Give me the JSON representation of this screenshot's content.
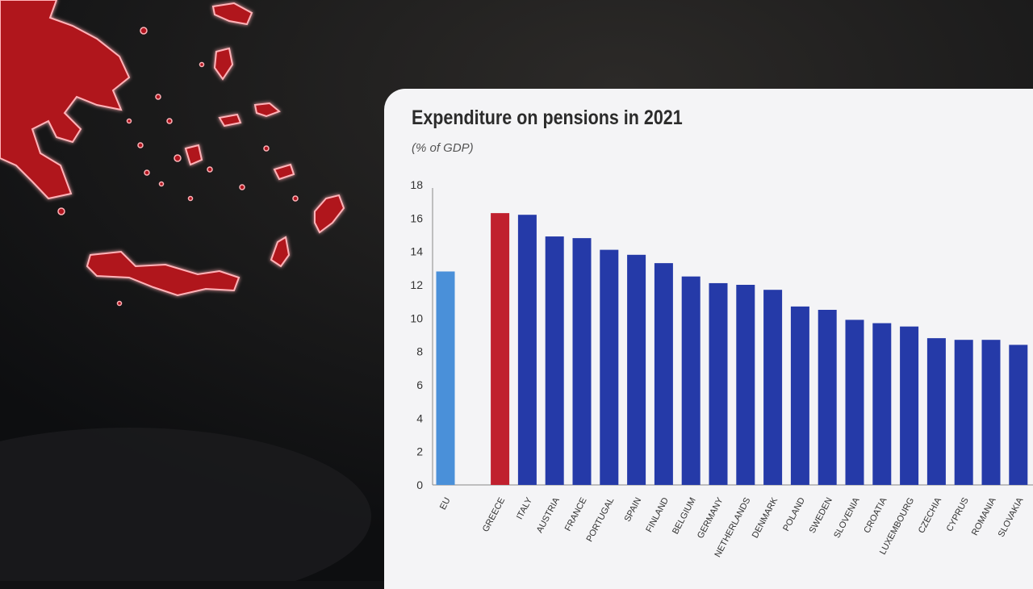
{
  "chart_data": {
    "type": "bar",
    "title": "Expenditure on pensions in 2021",
    "subtitle": "(% of GDP)",
    "xlabel": "",
    "ylabel": "",
    "ylim": [
      0,
      18
    ],
    "yticks": [
      0,
      2,
      4,
      6,
      8,
      10,
      12,
      14,
      16,
      18
    ],
    "categories": [
      "EU",
      "",
      "GREECE",
      "ITALY",
      "AUSTRIA",
      "FRANCE",
      "PORTUGAL",
      "SPAIN",
      "FINLAND",
      "BELGIUM",
      "GERMANY",
      "NETHERLANDS",
      "DENMARK",
      "POLAND",
      "SWEDEN",
      "SLOVENIA",
      "CROATIA",
      "LUXEMBOURG",
      "CZECHIA",
      "CYPRUS",
      "ROMANIA",
      "SLOVAKIA"
    ],
    "values": [
      12.8,
      null,
      16.3,
      16.2,
      14.9,
      14.8,
      14.1,
      13.8,
      13.3,
      12.5,
      12.1,
      12.0,
      11.7,
      10.7,
      10.5,
      9.9,
      9.7,
      9.5,
      8.8,
      8.7,
      8.7,
      8.4
    ],
    "bar_colors": [
      "#4a90d9",
      null,
      "#c0202e",
      "#253aa8",
      "#253aa8",
      "#253aa8",
      "#253aa8",
      "#253aa8",
      "#253aa8",
      "#253aa8",
      "#253aa8",
      "#253aa8",
      "#253aa8",
      "#253aa8",
      "#253aa8",
      "#253aa8",
      "#253aa8",
      "#253aa8",
      "#253aa8",
      "#253aa8",
      "#253aa8",
      "#253aa8"
    ],
    "grid": false,
    "legend": "none"
  },
  "colors": {
    "background": "#111214",
    "card": "#f4f4f6",
    "map_fill": "#b0141e",
    "map_outline": "#ffb3b8",
    "eu_bar": "#4a90d9",
    "highlight_bar": "#c0202e",
    "country_bar": "#253aa8"
  }
}
